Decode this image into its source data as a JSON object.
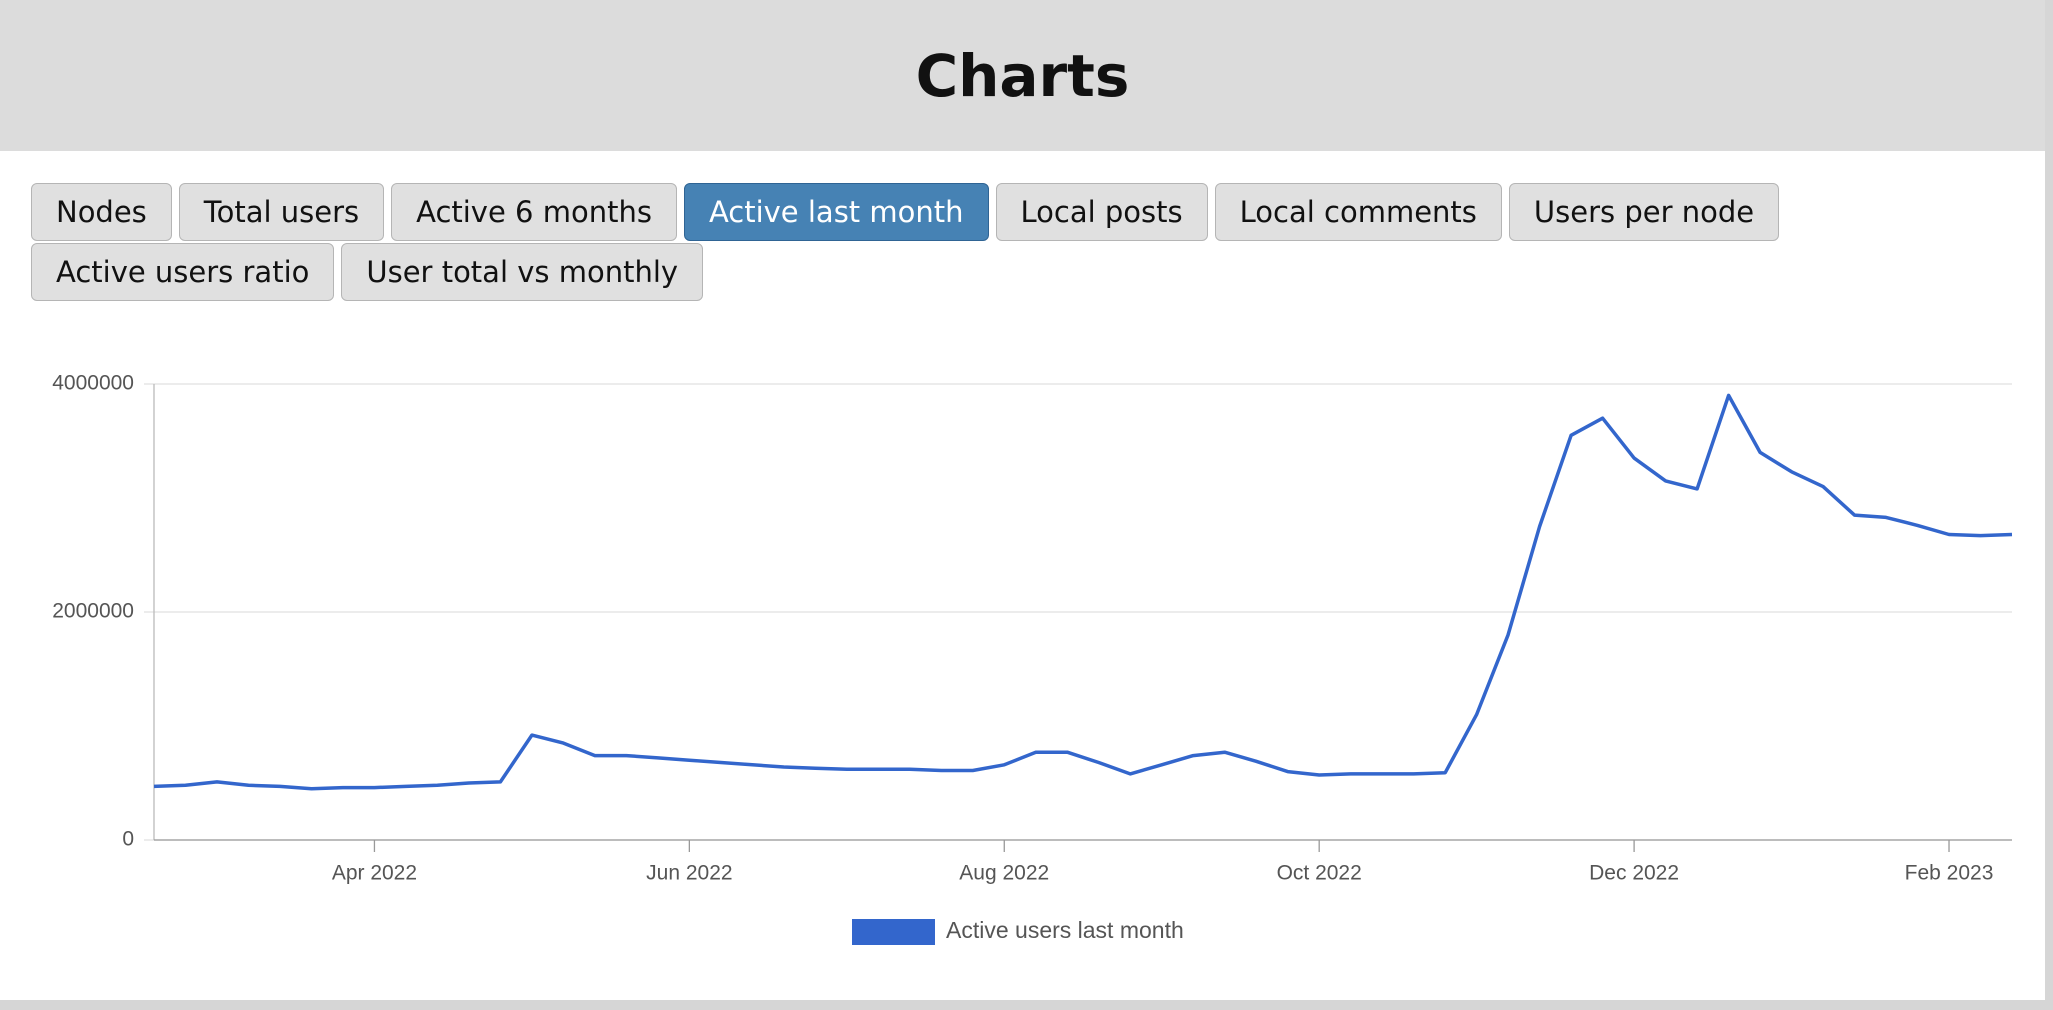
{
  "header": {
    "title": "Charts"
  },
  "buttons": [
    "Nodes",
    "Total users",
    "Active 6 months",
    "Active last month",
    "Local posts",
    "Local comments",
    "Users per node",
    "Active users ratio",
    "User total vs monthly"
  ],
  "active_button": 3,
  "chart_data": {
    "type": "line",
    "categories": [
      null,
      null,
      null,
      null,
      null,
      null,
      null,
      "Apr 2022",
      null,
      null,
      null,
      null,
      null,
      null,
      null,
      null,
      null,
      "Jun 2022",
      null,
      null,
      null,
      null,
      null,
      null,
      null,
      null,
      null,
      "Aug 2022",
      null,
      null,
      null,
      null,
      null,
      null,
      null,
      null,
      null,
      "Oct 2022",
      null,
      null,
      null,
      null,
      null,
      null,
      null,
      null,
      null,
      "Dec 2022",
      null,
      null,
      null,
      null,
      null,
      null,
      null,
      null,
      null,
      "Feb 2023",
      null,
      null
    ],
    "series": [
      {
        "name": "Active users last month",
        "color": "#3366cc",
        "values": [
          470000,
          480000,
          510000,
          480000,
          470000,
          450000,
          460000,
          460000,
          470000,
          480000,
          500000,
          510000,
          920000,
          850000,
          740000,
          740000,
          720000,
          700000,
          680000,
          660000,
          640000,
          630000,
          620000,
          620000,
          620000,
          610000,
          610000,
          660000,
          770000,
          770000,
          680000,
          580000,
          660000,
          740000,
          770000,
          690000,
          600000,
          570000,
          580000,
          580000,
          580000,
          590000,
          1100000,
          1800000,
          2750000,
          3550000,
          3700000,
          3350000,
          3150000,
          3080000,
          3900000,
          3400000,
          3230000,
          3100000,
          2850000,
          2830000,
          2760000,
          2680000,
          2670000,
          2680000
        ]
      }
    ],
    "ylim": [
      0,
      4000000
    ],
    "yticks": [
      0,
      2000000,
      4000000
    ],
    "grid": true,
    "legend": "bottom"
  }
}
